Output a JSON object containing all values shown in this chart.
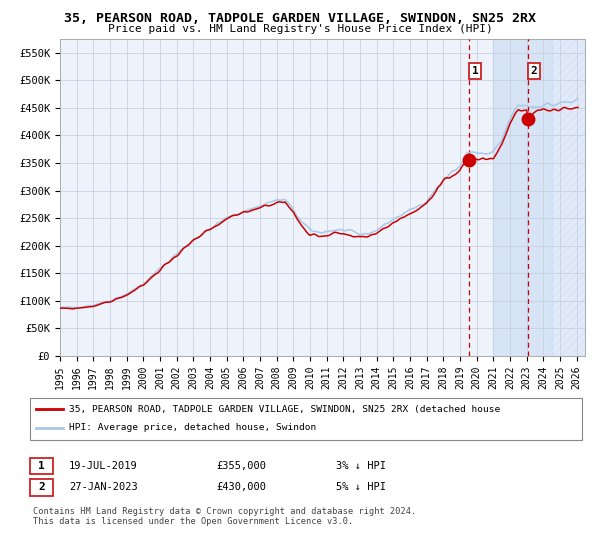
{
  "title_line1": "35, PEARSON ROAD, TADPOLE GARDEN VILLAGE, SWINDON, SN25 2RX",
  "title_line2": "Price paid vs. HM Land Registry's House Price Index (HPI)",
  "hpi_color": "#a8c8e8",
  "price_color": "#cc0000",
  "bg_color": "#ffffff",
  "plot_bg": "#eef2fa",
  "grid_color": "#c8d0e0",
  "marker1_value": 355000,
  "marker1_year": 2019.55,
  "marker2_value": 430000,
  "marker2_year": 2023.08,
  "legend_line1": "35, PEARSON ROAD, TADPOLE GARDEN VILLAGE, SWINDON, SN25 2RX (detached house",
  "legend_line2": "HPI: Average price, detached house, Swindon",
  "marker1_date_str": "19-JUL-2019",
  "marker1_price_str": "£355,000",
  "marker1_hpi_str": "3% ↓ HPI",
  "marker2_date_str": "27-JAN-2023",
  "marker2_price_str": "£430,000",
  "marker2_hpi_str": "5% ↓ HPI",
  "copyright_text": "Contains HM Land Registry data © Crown copyright and database right 2024.\nThis data is licensed under the Open Government Licence v3.0.",
  "ylim": [
    0,
    575000
  ],
  "yticks": [
    0,
    50000,
    100000,
    150000,
    200000,
    250000,
    300000,
    350000,
    400000,
    450000,
    500000,
    550000
  ],
  "ytick_labels": [
    "£0",
    "£50K",
    "£100K",
    "£150K",
    "£200K",
    "£250K",
    "£300K",
    "£350K",
    "£400K",
    "£450K",
    "£500K",
    "£550K"
  ],
  "xlim_start": 1995.0,
  "xlim_end": 2026.5,
  "xtick_years": [
    1995,
    1996,
    1997,
    1998,
    1999,
    2000,
    2001,
    2002,
    2003,
    2004,
    2005,
    2006,
    2007,
    2008,
    2009,
    2010,
    2011,
    2012,
    2013,
    2014,
    2015,
    2016,
    2017,
    2018,
    2019,
    2020,
    2021,
    2022,
    2023,
    2024,
    2025,
    2026
  ],
  "shade_start": 2021.0,
  "shade_end": 2024.5,
  "hatch_start": 2024.5,
  "hatch_end": 2026.5,
  "vline1_x": 2019.55,
  "vline2_x": 2023.08
}
